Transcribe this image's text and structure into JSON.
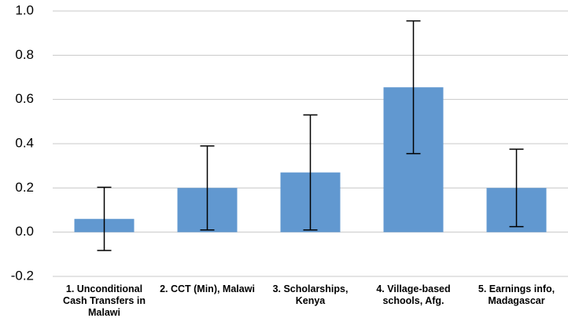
{
  "chart_data": {
    "type": "bar",
    "categories": [
      "1. Unconditional Cash Transfers in Malawi",
      "2. CCT (Min), Malawi",
      "3. Scholarships, Kenya",
      "4. Village-based schools, Afg.",
      "5. Earnings info, Madagascar"
    ],
    "values": [
      0.06,
      0.2,
      0.27,
      0.655,
      0.2
    ],
    "errors": [
      0.143,
      0.19,
      0.26,
      0.3,
      0.175
    ],
    "color": "#6198d0",
    "ylim": [
      -0.2,
      1.0
    ],
    "yticks": [
      -0.2,
      {
        "value": 0,
        "label": "0.0"
      },
      0.2,
      0.4,
      0.6,
      0.8,
      {
        "value": 1,
        "label": "1.0"
      }
    ],
    "grid": true
  }
}
